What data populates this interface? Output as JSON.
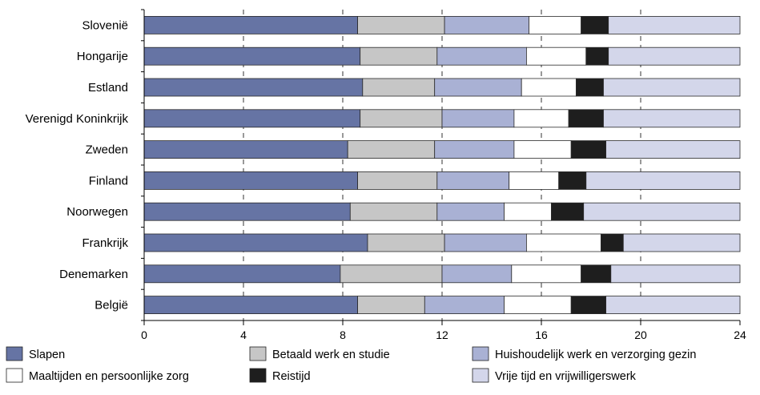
{
  "chart_data": {
    "type": "bar",
    "orientation": "horizontal",
    "stacked": true,
    "title": "",
    "xlabel": "",
    "ylabel": "",
    "xlim": [
      0,
      24
    ],
    "xticks": [
      0,
      4,
      8,
      12,
      16,
      20,
      24
    ],
    "grid": "dashed vertical lines at x ticks",
    "legend_position": "bottom",
    "categories": [
      "Slovenië",
      "Hongarije",
      "Estland",
      "Verenigd Koninkrijk",
      "Zweden",
      "Finland",
      "Noorwegen",
      "Frankrijk",
      "Denemarken",
      "België"
    ],
    "series": [
      {
        "name": "Slapen",
        "color": "#6674a4",
        "values": [
          8.6,
          8.7,
          8.8,
          8.7,
          8.2,
          8.6,
          8.3,
          9.0,
          7.9,
          8.6
        ]
      },
      {
        "name": "Betaald werk en studie",
        "color": "#c6c6c6",
        "values": [
          3.5,
          3.1,
          2.9,
          3.3,
          3.5,
          3.2,
          3.5,
          3.1,
          4.1,
          2.7
        ]
      },
      {
        "name": "Huishoudelijk werk en verzorging gezin",
        "color": "#a9b1d4",
        "values": [
          3.4,
          3.6,
          3.5,
          2.9,
          3.2,
          2.9,
          2.7,
          3.3,
          2.8,
          3.2
        ]
      },
      {
        "name": "Maaltijden en persoonlijke zorg",
        "color": "#ffffff",
        "values": [
          2.1,
          2.4,
          2.2,
          2.2,
          2.3,
          2.0,
          1.9,
          3.0,
          2.8,
          2.7
        ]
      },
      {
        "name": "Reistijd",
        "color": "#1e1e1e",
        "values": [
          1.1,
          0.9,
          1.1,
          1.4,
          1.4,
          1.1,
          1.3,
          0.9,
          1.2,
          1.4
        ]
      },
      {
        "name": "Vrije tijd en vrijwilligerswerk",
        "color": "#d3d6ea",
        "values": [
          5.3,
          5.3,
          5.5,
          5.5,
          5.4,
          6.2,
          6.3,
          4.7,
          5.2,
          5.4
        ]
      }
    ]
  }
}
